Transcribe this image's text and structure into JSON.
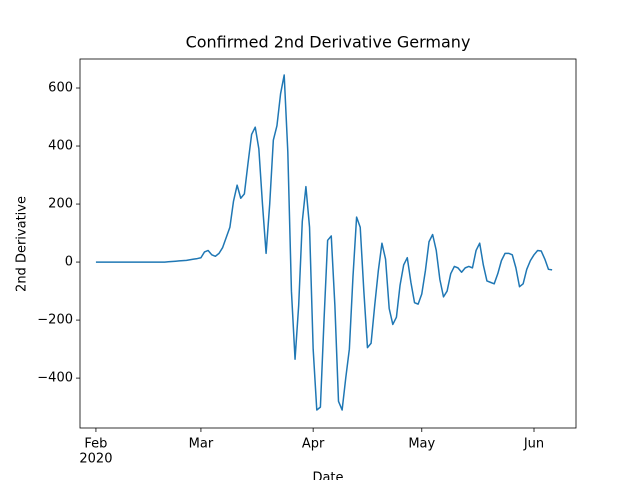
{
  "chart_data": {
    "type": "line",
    "title": "Confirmed 2nd Derivative Germany",
    "x_label": "Date",
    "y_label": "2nd Derivative",
    "x_offset_label": "2020",
    "x": [
      0,
      1,
      2,
      3,
      4,
      5,
      6,
      7,
      8,
      9,
      10,
      11,
      12,
      13,
      14,
      15,
      16,
      17,
      18,
      19,
      20,
      21,
      22,
      23,
      24,
      25,
      26,
      27,
      28,
      29,
      30,
      31,
      32,
      33,
      34,
      35,
      36,
      37,
      38,
      39,
      40,
      41,
      42,
      43,
      44,
      45,
      46,
      47,
      48,
      49,
      50,
      51,
      52,
      53,
      54,
      55,
      56,
      57,
      58,
      59,
      60,
      61,
      62,
      63,
      64,
      65,
      66,
      67,
      68,
      69,
      70,
      71,
      72,
      73,
      74,
      75,
      76,
      77,
      78,
      79,
      80,
      81,
      82,
      83,
      84,
      85,
      86,
      87,
      88,
      89,
      90,
      91,
      92,
      93,
      94,
      95,
      96,
      97,
      98,
      99,
      100,
      101,
      102,
      103,
      104,
      105,
      106,
      107,
      108,
      109,
      110,
      111,
      112,
      113,
      114,
      115,
      116,
      117,
      118,
      119,
      120,
      121,
      122,
      123,
      124,
      125,
      126
    ],
    "series": [
      {
        "color": "#1f77b4",
        "values": [
          0,
          0,
          0,
          0,
          0,
          0,
          0,
          0,
          0,
          0,
          0,
          0,
          0,
          0,
          0,
          0,
          0,
          0,
          0,
          0,
          1,
          2,
          3,
          4,
          5,
          6,
          8,
          10,
          12,
          15,
          35,
          40,
          25,
          20,
          30,
          50,
          85,
          120,
          210,
          265,
          220,
          235,
          340,
          440,
          465,
          390,
          200,
          30,
          200,
          420,
          470,
          580,
          645,
          380,
          -100,
          -335,
          -150,
          140,
          260,
          120,
          -300,
          -510,
          -500,
          -200,
          75,
          90,
          -150,
          -480,
          -510,
          -400,
          -300,
          -50,
          155,
          120,
          -100,
          -295,
          -280,
          -150,
          -30,
          65,
          10,
          -160,
          -215,
          -190,
          -80,
          -10,
          15,
          -70,
          -140,
          -145,
          -110,
          -30,
          70,
          95,
          40,
          -60,
          -120,
          -100,
          -40,
          -15,
          -20,
          -35,
          -20,
          -15,
          -20,
          40,
          65,
          -10,
          -65,
          -70,
          -75,
          -40,
          5,
          30,
          30,
          25,
          -20,
          -85,
          -75,
          -25,
          5,
          25,
          40,
          38,
          10,
          -25,
          -27
        ]
      }
    ],
    "xlim": [
      -4.4,
      132.6
    ],
    "xticks": [
      {
        "value": 0,
        "label": "Feb"
      },
      {
        "value": 29,
        "label": "Mar"
      },
      {
        "value": 60,
        "label": "Apr"
      },
      {
        "value": 90,
        "label": "May"
      },
      {
        "value": 121,
        "label": "Jun"
      }
    ],
    "ylim": [
      -572,
      700
    ],
    "yticks": [
      {
        "value": -400,
        "label": "−400"
      },
      {
        "value": -200,
        "label": "−200"
      },
      0,
      200,
      400,
      600
    ]
  }
}
